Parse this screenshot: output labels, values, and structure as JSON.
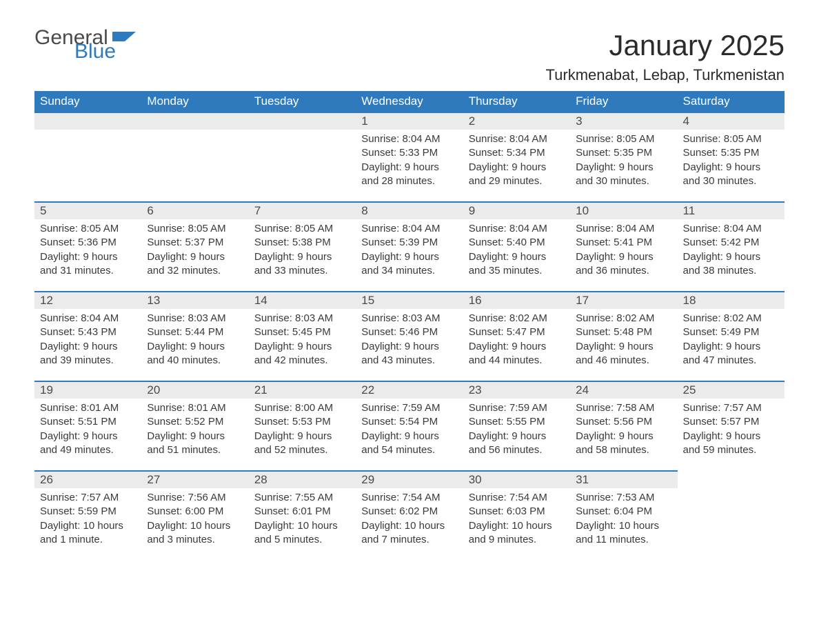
{
  "colors": {
    "header_bg": "#2f79bd",
    "header_text": "#ffffff",
    "daynum_bg": "#ebebeb",
    "row_divider": "#2f79bd",
    "body_text": "#3a3a3a",
    "page_bg": "#ffffff",
    "logo_gray": "#4a4a4a",
    "logo_blue": "#2f79bd"
  },
  "logo": {
    "part1": "General",
    "part2": "Blue"
  },
  "title": "January 2025",
  "subtitle": "Turkmenabat, Lebap, Turkmenistan",
  "weekdays": [
    "Sunday",
    "Monday",
    "Tuesday",
    "Wednesday",
    "Thursday",
    "Friday",
    "Saturday"
  ],
  "calendar": {
    "type": "table",
    "first_weekday_index": 3,
    "days": [
      {
        "n": "1",
        "sunrise": "Sunrise: 8:04 AM",
        "sunset": "Sunset: 5:33 PM",
        "daylight": "Daylight: 9 hours and 28 minutes."
      },
      {
        "n": "2",
        "sunrise": "Sunrise: 8:04 AM",
        "sunset": "Sunset: 5:34 PM",
        "daylight": "Daylight: 9 hours and 29 minutes."
      },
      {
        "n": "3",
        "sunrise": "Sunrise: 8:05 AM",
        "sunset": "Sunset: 5:35 PM",
        "daylight": "Daylight: 9 hours and 30 minutes."
      },
      {
        "n": "4",
        "sunrise": "Sunrise: 8:05 AM",
        "sunset": "Sunset: 5:35 PM",
        "daylight": "Daylight: 9 hours and 30 minutes."
      },
      {
        "n": "5",
        "sunrise": "Sunrise: 8:05 AM",
        "sunset": "Sunset: 5:36 PM",
        "daylight": "Daylight: 9 hours and 31 minutes."
      },
      {
        "n": "6",
        "sunrise": "Sunrise: 8:05 AM",
        "sunset": "Sunset: 5:37 PM",
        "daylight": "Daylight: 9 hours and 32 minutes."
      },
      {
        "n": "7",
        "sunrise": "Sunrise: 8:05 AM",
        "sunset": "Sunset: 5:38 PM",
        "daylight": "Daylight: 9 hours and 33 minutes."
      },
      {
        "n": "8",
        "sunrise": "Sunrise: 8:04 AM",
        "sunset": "Sunset: 5:39 PM",
        "daylight": "Daylight: 9 hours and 34 minutes."
      },
      {
        "n": "9",
        "sunrise": "Sunrise: 8:04 AM",
        "sunset": "Sunset: 5:40 PM",
        "daylight": "Daylight: 9 hours and 35 minutes."
      },
      {
        "n": "10",
        "sunrise": "Sunrise: 8:04 AM",
        "sunset": "Sunset: 5:41 PM",
        "daylight": "Daylight: 9 hours and 36 minutes."
      },
      {
        "n": "11",
        "sunrise": "Sunrise: 8:04 AM",
        "sunset": "Sunset: 5:42 PM",
        "daylight": "Daylight: 9 hours and 38 minutes."
      },
      {
        "n": "12",
        "sunrise": "Sunrise: 8:04 AM",
        "sunset": "Sunset: 5:43 PM",
        "daylight": "Daylight: 9 hours and 39 minutes."
      },
      {
        "n": "13",
        "sunrise": "Sunrise: 8:03 AM",
        "sunset": "Sunset: 5:44 PM",
        "daylight": "Daylight: 9 hours and 40 minutes."
      },
      {
        "n": "14",
        "sunrise": "Sunrise: 8:03 AM",
        "sunset": "Sunset: 5:45 PM",
        "daylight": "Daylight: 9 hours and 42 minutes."
      },
      {
        "n": "15",
        "sunrise": "Sunrise: 8:03 AM",
        "sunset": "Sunset: 5:46 PM",
        "daylight": "Daylight: 9 hours and 43 minutes."
      },
      {
        "n": "16",
        "sunrise": "Sunrise: 8:02 AM",
        "sunset": "Sunset: 5:47 PM",
        "daylight": "Daylight: 9 hours and 44 minutes."
      },
      {
        "n": "17",
        "sunrise": "Sunrise: 8:02 AM",
        "sunset": "Sunset: 5:48 PM",
        "daylight": "Daylight: 9 hours and 46 minutes."
      },
      {
        "n": "18",
        "sunrise": "Sunrise: 8:02 AM",
        "sunset": "Sunset: 5:49 PM",
        "daylight": "Daylight: 9 hours and 47 minutes."
      },
      {
        "n": "19",
        "sunrise": "Sunrise: 8:01 AM",
        "sunset": "Sunset: 5:51 PM",
        "daylight": "Daylight: 9 hours and 49 minutes."
      },
      {
        "n": "20",
        "sunrise": "Sunrise: 8:01 AM",
        "sunset": "Sunset: 5:52 PM",
        "daylight": "Daylight: 9 hours and 51 minutes."
      },
      {
        "n": "21",
        "sunrise": "Sunrise: 8:00 AM",
        "sunset": "Sunset: 5:53 PM",
        "daylight": "Daylight: 9 hours and 52 minutes."
      },
      {
        "n": "22",
        "sunrise": "Sunrise: 7:59 AM",
        "sunset": "Sunset: 5:54 PM",
        "daylight": "Daylight: 9 hours and 54 minutes."
      },
      {
        "n": "23",
        "sunrise": "Sunrise: 7:59 AM",
        "sunset": "Sunset: 5:55 PM",
        "daylight": "Daylight: 9 hours and 56 minutes."
      },
      {
        "n": "24",
        "sunrise": "Sunrise: 7:58 AM",
        "sunset": "Sunset: 5:56 PM",
        "daylight": "Daylight: 9 hours and 58 minutes."
      },
      {
        "n": "25",
        "sunrise": "Sunrise: 7:57 AM",
        "sunset": "Sunset: 5:57 PM",
        "daylight": "Daylight: 9 hours and 59 minutes."
      },
      {
        "n": "26",
        "sunrise": "Sunrise: 7:57 AM",
        "sunset": "Sunset: 5:59 PM",
        "daylight": "Daylight: 10 hours and 1 minute."
      },
      {
        "n": "27",
        "sunrise": "Sunrise: 7:56 AM",
        "sunset": "Sunset: 6:00 PM",
        "daylight": "Daylight: 10 hours and 3 minutes."
      },
      {
        "n": "28",
        "sunrise": "Sunrise: 7:55 AM",
        "sunset": "Sunset: 6:01 PM",
        "daylight": "Daylight: 10 hours and 5 minutes."
      },
      {
        "n": "29",
        "sunrise": "Sunrise: 7:54 AM",
        "sunset": "Sunset: 6:02 PM",
        "daylight": "Daylight: 10 hours and 7 minutes."
      },
      {
        "n": "30",
        "sunrise": "Sunrise: 7:54 AM",
        "sunset": "Sunset: 6:03 PM",
        "daylight": "Daylight: 10 hours and 9 minutes."
      },
      {
        "n": "31",
        "sunrise": "Sunrise: 7:53 AM",
        "sunset": "Sunset: 6:04 PM",
        "daylight": "Daylight: 10 hours and 11 minutes."
      }
    ]
  }
}
